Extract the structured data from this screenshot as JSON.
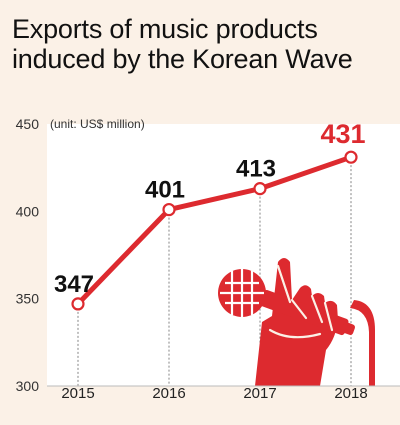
{
  "chart_data": {
    "type": "line",
    "title_lines": [
      "Exports of music products",
      "induced by the Korean Wave"
    ],
    "unit_note": "(unit: US$ million)",
    "x": [
      "2015",
      "2016",
      "2017",
      "2018"
    ],
    "values": [
      347,
      401,
      413,
      431
    ],
    "data_labels": [
      "347",
      "401",
      "413",
      "431"
    ],
    "ylim": [
      300,
      450
    ],
    "yticks": [
      300,
      350,
      400,
      450
    ],
    "ytick_labels": [
      "300",
      "350",
      "400",
      "450"
    ],
    "grid": false,
    "colors": {
      "line": "#dd2a2f",
      "highlight_label": "#dd2a2f",
      "label": "#111111",
      "guide": "#666666",
      "baseline": "#bbbbbb",
      "background": "#fbf1e7",
      "band": "#ffffff"
    },
    "decoration": "red-hand-holding-microphone-icon"
  }
}
